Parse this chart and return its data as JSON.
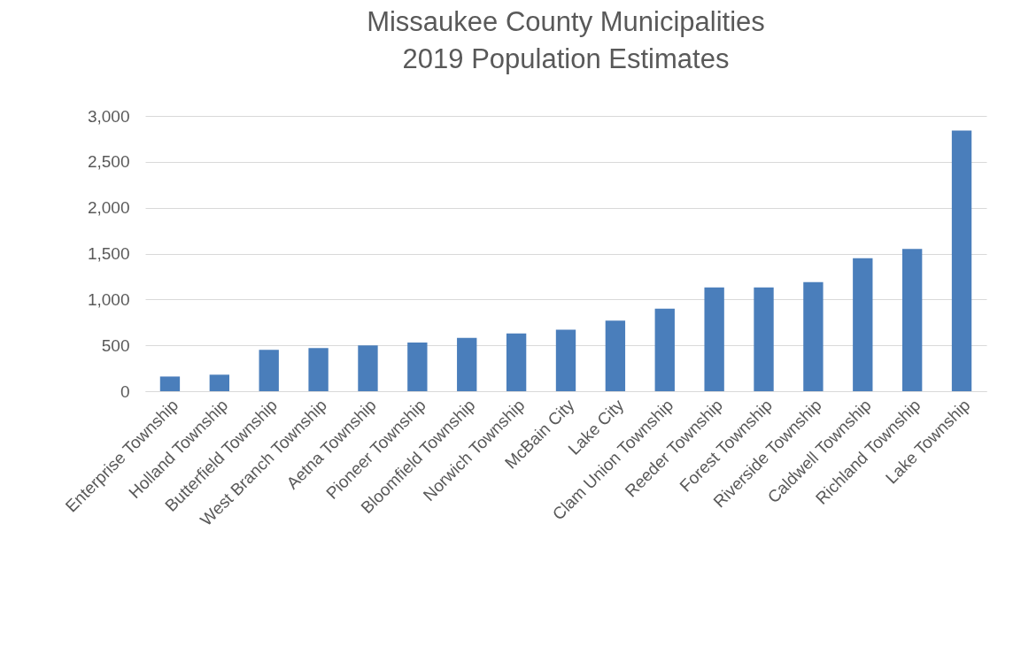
{
  "chart_data": {
    "type": "bar",
    "title": [
      "Missaukee County Municipalities",
      "2019 Population Estimates"
    ],
    "categories": [
      "Enterprise Township",
      "Holland Township",
      "Butterfield Township",
      "West Branch Township",
      "Aetna Township",
      "Pioneer Township",
      "Bloomfield Township",
      "Norwich Township",
      "McBain City",
      "Lake City",
      "Clam Union Township",
      "Reeder Township",
      "Forest Township",
      "Riverside Township",
      "Caldwell Township",
      "Richland Township",
      "Lake Township"
    ],
    "values": [
      160,
      180,
      450,
      470,
      500,
      530,
      580,
      630,
      670,
      770,
      900,
      1130,
      1130,
      1190,
      1450,
      1550,
      2840
    ],
    "color": "#4a7ebb",
    "ylim": [
      0,
      3000
    ],
    "yticks": [
      {
        "value": 0,
        "label": "0"
      },
      {
        "value": 500,
        "label": "500"
      },
      {
        "value": 1000,
        "label": "1,000"
      },
      {
        "value": 1500,
        "label": "1,500"
      },
      {
        "value": 2000,
        "label": "2,000"
      },
      {
        "value": 2500,
        "label": "2,500"
      },
      {
        "value": 3000,
        "label": "3,000"
      }
    ],
    "grid": "y"
  }
}
